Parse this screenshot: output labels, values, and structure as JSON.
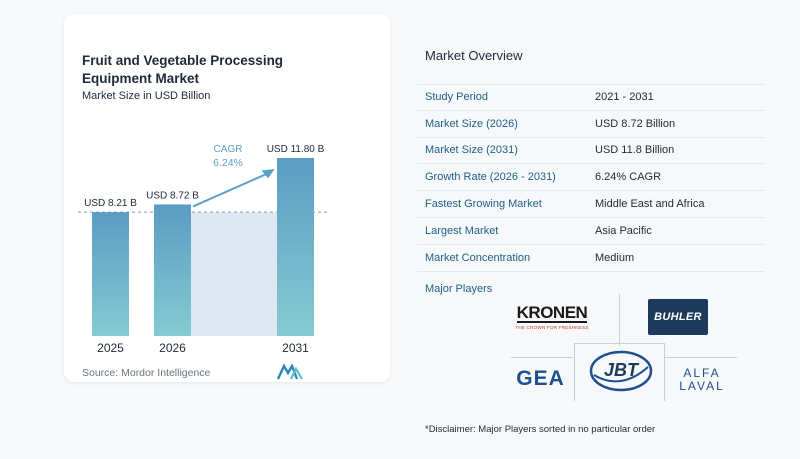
{
  "chart_data": {
    "type": "bar",
    "title": "Fruit and Vegetable Processing Equipment Market",
    "subtitle": "Market Size in USD Billion",
    "categories": [
      "2025",
      "2026",
      "2031"
    ],
    "values": [
      8.21,
      8.72,
      11.8
    ],
    "value_labels": [
      "USD 8.21 B",
      "USD 8.72 B",
      "USD 11.80 B"
    ],
    "cagr_label": "CAGR",
    "cagr_value": "6.24%",
    "colors": {
      "bar_top": "#5a9cc3",
      "bar_bottom": "#84cbd2",
      "band": "#dde8f2",
      "arrow": "#5aa0c8",
      "cagr_text": "#5aa0c8"
    }
  },
  "source": "Source:  Mordor Intelligence",
  "overview": {
    "title": "Market Overview",
    "rows": [
      {
        "label": "Study Period",
        "value": "2021 - 2031"
      },
      {
        "label": "Market Size (2026)",
        "value": "USD 8.72 Billion"
      },
      {
        "label": "Market Size (2031)",
        "value": "USD 11.8 Billion"
      },
      {
        "label": "Growth Rate (2026 - 2031)",
        "value": "6.24% CAGR"
      },
      {
        "label": "Fastest Growing Market",
        "value": "Middle East and Africa"
      },
      {
        "label": "Largest Market",
        "value": "Asia Pacific"
      },
      {
        "label": "Market Concentration",
        "value": "Medium"
      }
    ]
  },
  "players": {
    "title": "Major Players",
    "kronen_name": "KRONEN",
    "kronen_tagline": "THE CROWN FOR FRESHNESS",
    "buhler_name": "BUHLER",
    "gea_name": "GEA",
    "jbt_name": "JBT",
    "alfa_line1": "ALFA",
    "alfa_line2": "LAVAL"
  },
  "disclaimer": "*Disclaimer: Major Players sorted in no particular order"
}
